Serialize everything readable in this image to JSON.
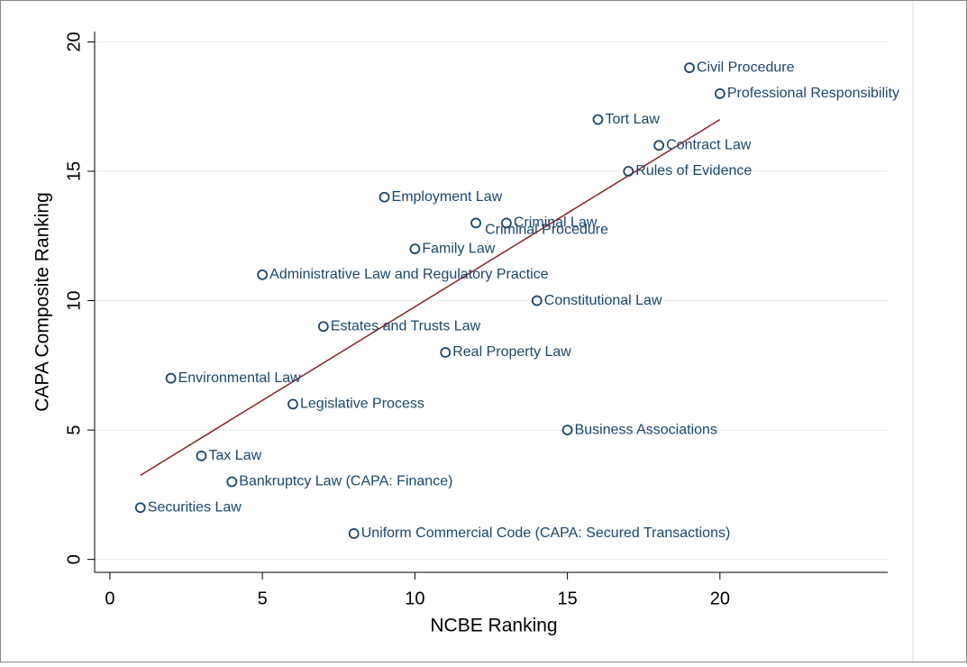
{
  "chart_data": {
    "type": "scatter",
    "x_label": "NCBE Ranking",
    "y_label": "CAPA Composite Ranking",
    "labels": [
      "Civil Procedure",
      "Professional Responsibility",
      "Tort Law",
      "Contract Law",
      "Rules of Evidence",
      "Employment Law",
      "Criminal Procedure",
      "Criminal Law",
      "Family Law",
      "Administrative Law and Regulatory Practice",
      "Constitutional Law",
      "Estates and Trusts Law",
      "Real Property Law",
      "Environmental Law",
      "Legislative Process",
      "Business Associations",
      "Tax Law",
      "Bankruptcy Law (CAPA: Finance)",
      "Securities Law",
      "Uniform Commercial Code (CAPA: Secured Transactions)"
    ],
    "x": [
      19,
      20,
      16,
      18,
      17,
      9,
      12,
      13,
      10,
      5,
      14,
      7,
      11,
      2,
      6,
      15,
      3,
      4,
      1,
      8
    ],
    "values": [
      19,
      18,
      17,
      16,
      15,
      14,
      13,
      13,
      12,
      11,
      10,
      9,
      8,
      7,
      6,
      5,
      4,
      3,
      2,
      1
    ],
    "label_positions": [
      3,
      3,
      3,
      3,
      3,
      3,
      4,
      3,
      3,
      3,
      3,
      3,
      3,
      3,
      3,
      3,
      3,
      3,
      3,
      3
    ],
    "color": "#1a476f",
    "fit_line": {
      "x": [
        1,
        20
      ],
      "values": [
        3.25,
        17
      ],
      "color": "#8b2323"
    },
    "xlim": [
      -0.5,
      25.5
    ],
    "ylim": [
      -0.5,
      20.4
    ],
    "xticks": [
      0,
      5,
      10,
      15,
      20
    ],
    "yticks": [
      0,
      5,
      10,
      15,
      20
    ],
    "grid": true
  }
}
